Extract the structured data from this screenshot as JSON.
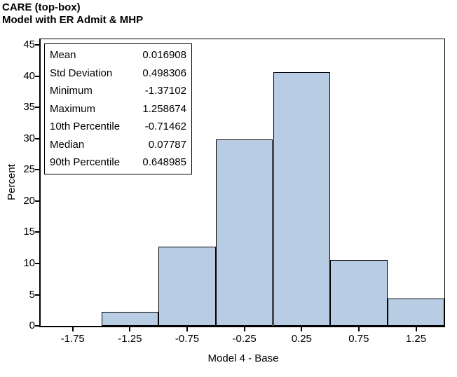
{
  "chart_data": {
    "type": "bar",
    "title": "CARE (top-box)",
    "subtitle": "Model with ER Admit & MHP",
    "xlabel": "Model 4 - Base",
    "ylabel": "Percent",
    "categories": [
      -1.75,
      -1.25,
      -0.75,
      -0.25,
      0.25,
      0.75,
      1.25
    ],
    "x_tick_labels": [
      "-1.75",
      "-1.25",
      "-0.75",
      "-0.25",
      "0.25",
      "0.75",
      "1.25"
    ],
    "values": [
      0,
      2.3,
      12.7,
      29.9,
      40.7,
      10.6,
      4.4
    ],
    "bin_width": 0.5,
    "xlim": [
      -2.03,
      1.51
    ],
    "ylim": [
      0,
      45
    ],
    "y_tick_step": 5,
    "y_tick_labels": [
      "0",
      "5",
      "10",
      "15",
      "20",
      "25",
      "30",
      "35",
      "40",
      "45"
    ],
    "grid": false,
    "legend": "none",
    "bar_fill": "#b8cce4",
    "bar_border": "#000000",
    "frame_color": "#000000",
    "stats_inset": {
      "position": "top-left",
      "rows": [
        {
          "label": "Mean",
          "value": "0.016908"
        },
        {
          "label": "Std Deviation",
          "value": "0.498306"
        },
        {
          "label": "Minimum",
          "value": "-1.37102"
        },
        {
          "label": "Maximum",
          "value": "1.258674"
        },
        {
          "label": "10th Percentile",
          "value": "-0.71462"
        },
        {
          "label": "Median",
          "value": "0.07787"
        },
        {
          "label": "90th Percentile",
          "value": "0.648985"
        }
      ]
    }
  }
}
